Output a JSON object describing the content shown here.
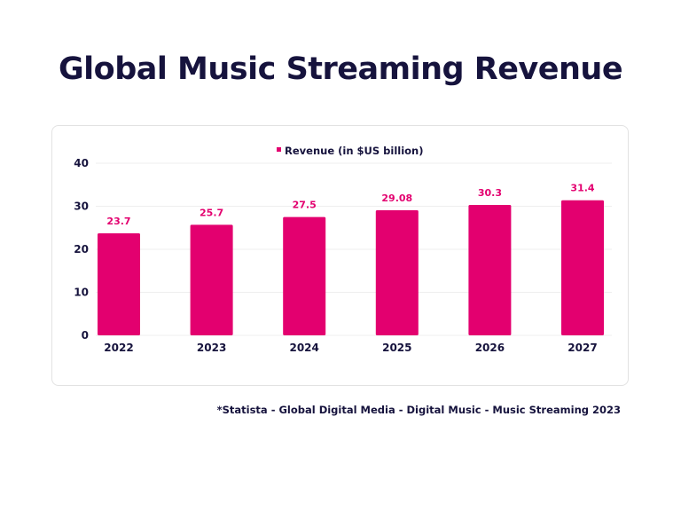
{
  "title": "Global Music Streaming Revenue",
  "source": "*Statista - Global Digital Media - Digital Music - Music Streaming 2023",
  "chart_data": {
    "type": "bar",
    "categories": [
      "2022",
      "2023",
      "2024",
      "2025",
      "2026",
      "2027"
    ],
    "series": [
      {
        "name": "Revenue (in $US billion)",
        "values": [
          23.7,
          25.7,
          27.5,
          29.08,
          30.3,
          31.4
        ],
        "labels": [
          "23.7",
          "25.7",
          "27.5",
          "29.08",
          "30.3",
          "31.4"
        ]
      }
    ],
    "ylim": [
      0,
      40
    ],
    "yticks": [
      0,
      10,
      20,
      30,
      40
    ],
    "grid": true,
    "legend": "top",
    "bar_color": "#e3006f",
    "text_color": "#16133d"
  }
}
